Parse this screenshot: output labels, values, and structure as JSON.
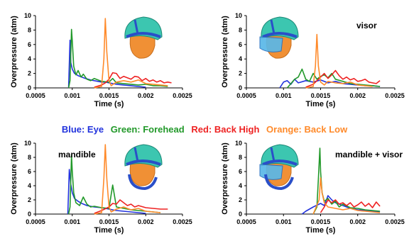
{
  "legend": {
    "entries": [
      {
        "text": "Blue: Eye",
        "color": "#2233dd"
      },
      {
        "text": "Green: Forehead",
        "color": "#22992a"
      },
      {
        "text": "Red: Back High",
        "color": "#ee2222"
      },
      {
        "text": "Orange:  Back Low",
        "color": "#ff8a2a"
      }
    ]
  },
  "chart_data": [
    {
      "type": "line",
      "annotation": "",
      "xlabel": "Time (s)",
      "ylabel": "Overpressure (atm)",
      "xlim": [
        0.0005,
        0.0025
      ],
      "ylim": [
        0,
        10
      ],
      "xticks": [
        "0.0005",
        "0.001",
        "0.0015",
        "0.002",
        "0.0025"
      ],
      "yticks": [
        "0",
        "2",
        "4",
        "6",
        "8",
        "10"
      ],
      "helmet": "helmet-head",
      "series": [
        {
          "name": "Eye",
          "color": "#2233dd",
          "x": [
            0.00095,
            0.00097,
            0.00098,
            0.001,
            0.00103,
            0.00108,
            0.00113,
            0.00118,
            0.00125,
            0.0013,
            0.00135,
            0.0014,
            0.00145,
            0.0015,
            0.0016,
            0.0017,
            0.0018,
            0.0019,
            0.002
          ],
          "y": [
            0,
            6.6,
            3.5,
            2.6,
            2.0,
            1.7,
            1.5,
            1.3,
            1.1,
            1.0,
            0.9,
            0.8,
            0.8,
            0.7,
            0.5,
            0.4,
            0.3,
            0.2,
            0.1
          ]
        },
        {
          "name": "Forehead",
          "color": "#22992a",
          "x": [
            0.00095,
            0.00097,
            0.00099,
            0.001,
            0.00102,
            0.00105,
            0.00108,
            0.00112,
            0.00115,
            0.0012,
            0.00125,
            0.0013,
            0.0014,
            0.0015,
            0.00155,
            0.0016,
            0.0017,
            0.0018,
            0.0019,
            0.002,
            0.0021,
            0.0022,
            0.0023
          ],
          "y": [
            0,
            1,
            8.1,
            6.5,
            3.0,
            1.8,
            2.4,
            1.5,
            1.9,
            1.2,
            1.0,
            1.3,
            0.9,
            0.8,
            1.3,
            0.7,
            0.6,
            0.5,
            0.4,
            0.5,
            0.3,
            0.3,
            0.2
          ]
        },
        {
          "name": "Back High",
          "color": "#ee2222",
          "x": [
            0.0013,
            0.0014,
            0.00145,
            0.0015,
            0.00155,
            0.0016,
            0.00165,
            0.0017,
            0.00175,
            0.0018,
            0.00185,
            0.0019,
            0.00195,
            0.002,
            0.00205,
            0.0021,
            0.00215,
            0.0022,
            0.00225,
            0.0023,
            0.00235
          ],
          "y": [
            0.1,
            0.4,
            0.7,
            1.2,
            2.1,
            2.0,
            1.3,
            1.6,
            1.4,
            1.2,
            1.6,
            1.5,
            1.0,
            1.3,
            0.9,
            1.1,
            0.8,
            1.0,
            0.7,
            0.8,
            0.7
          ]
        },
        {
          "name": "Back Low",
          "color": "#ff8a2a",
          "x": [
            0.0013,
            0.0014,
            0.00143,
            0.00145,
            0.00147,
            0.0015,
            0.00153,
            0.0016,
            0.0017,
            0.0018,
            0.0019,
            0.002,
            0.0021,
            0.0022,
            0.0023
          ],
          "y": [
            0,
            0.2,
            4.0,
            9.6,
            5.0,
            1.0,
            0.3,
            0.8,
            1.0,
            0.8,
            1.1,
            0.6,
            0.5,
            0.4,
            0.3
          ]
        }
      ]
    },
    {
      "type": "line",
      "annotation": "visor",
      "xlabel": "Time (s)",
      "ylabel": "Overpressure (atm)",
      "xlim": [
        0.0005,
        0.0025
      ],
      "ylim": [
        0,
        10
      ],
      "xticks": [
        "0.0005",
        "0.001",
        "0.0015",
        "0.002",
        "0.0025"
      ],
      "yticks": [
        "0",
        "2",
        "4",
        "6",
        "8",
        "10"
      ],
      "helmet": "helmet-visor",
      "series": [
        {
          "name": "Eye",
          "color": "#2233dd",
          "x": [
            0.00095,
            0.001,
            0.00105,
            0.0011,
            0.00115,
            0.0012,
            0.0013,
            0.0014,
            0.0015,
            0.0016,
            0.0017,
            0.0018,
            0.0019,
            0.002,
            0.0021,
            0.0022,
            0.0023
          ],
          "y": [
            0,
            0.8,
            1.0,
            0.5,
            1.2,
            0.7,
            1.0,
            0.8,
            1.1,
            0.7,
            0.9,
            0.6,
            0.5,
            0.4,
            0.3,
            0.3,
            0.2
          ]
        },
        {
          "name": "Forehead",
          "color": "#22992a",
          "x": [
            0.00105,
            0.0011,
            0.00115,
            0.0012,
            0.00125,
            0.0013,
            0.00135,
            0.0014,
            0.00145,
            0.0015,
            0.00155,
            0.0016,
            0.00165,
            0.0017,
            0.0018,
            0.0019,
            0.002,
            0.0021,
            0.0022,
            0.0023
          ],
          "y": [
            0,
            0.6,
            1.2,
            1.5,
            2.6,
            1.2,
            0.9,
            2.0,
            1.2,
            1.6,
            1.8,
            1.4,
            2.0,
            1.2,
            0.9,
            0.6,
            0.5,
            0.4,
            0.3,
            0.2
          ]
        },
        {
          "name": "Back High",
          "color": "#ee2222",
          "x": [
            0.0013,
            0.0014,
            0.0015,
            0.00155,
            0.0016,
            0.00165,
            0.0017,
            0.00175,
            0.0018,
            0.00185,
            0.0019,
            0.00195,
            0.002,
            0.00205,
            0.0021,
            0.00215,
            0.0022,
            0.00225,
            0.0023
          ],
          "y": [
            0.1,
            0.5,
            1.5,
            2.0,
            1.3,
            1.8,
            2.4,
            1.7,
            1.2,
            1.5,
            1.1,
            1.3,
            0.9,
            1.0,
            1.2,
            0.8,
            0.7,
            0.6,
            1.0
          ]
        },
        {
          "name": "Back Low",
          "color": "#ff8a2a",
          "x": [
            0.0013,
            0.0014,
            0.00143,
            0.00145,
            0.00147,
            0.0015,
            0.00155,
            0.0016,
            0.0017,
            0.0018,
            0.0019,
            0.002,
            0.0021,
            0.0022
          ],
          "y": [
            0,
            0.2,
            3.0,
            7.4,
            3.0,
            0.8,
            0.4,
            0.9,
            0.7,
            0.6,
            0.8,
            0.4,
            0.3,
            0.2
          ]
        }
      ]
    },
    {
      "type": "line",
      "annotation": "mandible",
      "xlabel": "Time (s)",
      "ylabel": "Overpressure (atm)",
      "xlim": [
        0.0005,
        0.0025
      ],
      "ylim": [
        0,
        10
      ],
      "xticks": [
        "0.0005",
        "0.001",
        "0.0015",
        "0.002",
        "0.0025"
      ],
      "yticks": [
        "0",
        "2",
        "4",
        "6",
        "8",
        "10"
      ],
      "helmet": "helmet-mandible",
      "series": [
        {
          "name": "Eye",
          "color": "#2233dd",
          "x": [
            0.00094,
            0.00096,
            0.00098,
            0.001,
            0.00103,
            0.00108,
            0.00113,
            0.0012,
            0.0013,
            0.0014,
            0.0015,
            0.0016,
            0.0017,
            0.0018,
            0.0019,
            0.002
          ],
          "y": [
            0,
            6.3,
            4.2,
            3.0,
            2.2,
            1.8,
            1.5,
            1.2,
            1.0,
            0.9,
            0.7,
            0.5,
            0.4,
            0.3,
            0.2,
            0.1
          ]
        },
        {
          "name": "Forehead",
          "color": "#22992a",
          "x": [
            0.00095,
            0.00097,
            0.00099,
            0.001,
            0.00102,
            0.00105,
            0.0011,
            0.00115,
            0.0012,
            0.00125,
            0.0013,
            0.0014,
            0.0015,
            0.00155,
            0.0016,
            0.0017,
            0.0018,
            0.0019,
            0.002,
            0.0021,
            0.0022
          ],
          "y": [
            0,
            1,
            8.3,
            6.0,
            3.0,
            1.6,
            1.2,
            2.4,
            1.4,
            1.0,
            1.1,
            0.9,
            0.8,
            4.1,
            1.0,
            0.8,
            0.6,
            0.5,
            0.4,
            0.3,
            0.2
          ]
        },
        {
          "name": "Back High",
          "color": "#ee2222",
          "x": [
            0.0013,
            0.0014,
            0.0015,
            0.00155,
            0.0016,
            0.00165,
            0.0017,
            0.00175,
            0.0018,
            0.00185,
            0.0019,
            0.002,
            0.0021,
            0.0022,
            0.0023
          ],
          "y": [
            0.1,
            0.5,
            1.0,
            1.5,
            1.4,
            2.0,
            1.6,
            1.2,
            1.4,
            1.0,
            1.2,
            0.9,
            0.8,
            0.7,
            0.7
          ]
        },
        {
          "name": "Back Low",
          "color": "#ff8a2a",
          "x": [
            0.0013,
            0.0014,
            0.00143,
            0.00145,
            0.00147,
            0.0015,
            0.00153,
            0.0016,
            0.0017,
            0.0018,
            0.0019,
            0.002,
            0.0021,
            0.0022
          ],
          "y": [
            0,
            0.2,
            5.0,
            9.8,
            5.0,
            1.0,
            0.3,
            0.7,
            1.0,
            0.6,
            0.8,
            0.4,
            0.3,
            0.2
          ]
        }
      ]
    },
    {
      "type": "line",
      "annotation": "mandible + visor",
      "xlabel": "Time (s)",
      "ylabel": "Overpressure (atm)",
      "xlim": [
        0.0005,
        0.0025
      ],
      "ylim": [
        0,
        10
      ],
      "xticks": [
        "0.0005",
        "0.001",
        "0.0015",
        "0.002",
        "0.0025"
      ],
      "yticks": [
        "0",
        "2",
        "4",
        "6",
        "8",
        "10"
      ],
      "helmet": "helmet-mandible-visor",
      "series": [
        {
          "name": "Eye",
          "color": "#2233dd",
          "x": [
            0.00125,
            0.0013,
            0.0014,
            0.0015,
            0.00155,
            0.0016,
            0.00165,
            0.0017,
            0.0018,
            0.0019,
            0.002,
            0.0021,
            0.0022,
            0.0023
          ],
          "y": [
            0,
            0.4,
            1.0,
            1.5,
            1.2,
            2.6,
            2.0,
            1.6,
            1.2,
            0.8,
            0.6,
            0.5,
            0.4,
            0.3
          ]
        },
        {
          "name": "Forehead",
          "color": "#22992a",
          "x": [
            0.0014,
            0.00145,
            0.00147,
            0.00149,
            0.0015,
            0.00152,
            0.00155,
            0.0016,
            0.00165,
            0.0017,
            0.00175,
            0.0018,
            0.0019,
            0.002,
            0.0021,
            0.0022,
            0.0023
          ],
          "y": [
            0,
            1.0,
            5.0,
            9.3,
            6.0,
            3.0,
            1.8,
            2.2,
            1.4,
            1.8,
            1.0,
            1.4,
            0.9,
            0.8,
            0.6,
            0.5,
            0.4
          ]
        },
        {
          "name": "Back High",
          "color": "#ee2222",
          "x": [
            0.0015,
            0.00155,
            0.0016,
            0.00165,
            0.0017,
            0.00175,
            0.0018,
            0.00185,
            0.0019,
            0.00195,
            0.002,
            0.00205,
            0.0021,
            0.00215,
            0.0022,
            0.00225,
            0.0023
          ],
          "y": [
            0.2,
            1.0,
            2.0,
            1.6,
            2.0,
            1.4,
            1.6,
            1.2,
            1.6,
            1.0,
            1.3,
            1.7,
            1.1,
            1.5,
            0.9,
            1.7,
            1.1
          ]
        },
        {
          "name": "Back Low",
          "color": "#ff8a2a",
          "x": [
            0.0014,
            0.00148,
            0.0015,
            0.00152,
            0.00155,
            0.0016,
            0.0017,
            0.0018,
            0.0019,
            0.002,
            0.0021,
            0.0022,
            0.0023
          ],
          "y": [
            0,
            2.0,
            5.1,
            3.0,
            1.6,
            1.0,
            0.8,
            0.6,
            0.8,
            0.5,
            0.4,
            0.3,
            0.2
          ]
        }
      ]
    }
  ]
}
